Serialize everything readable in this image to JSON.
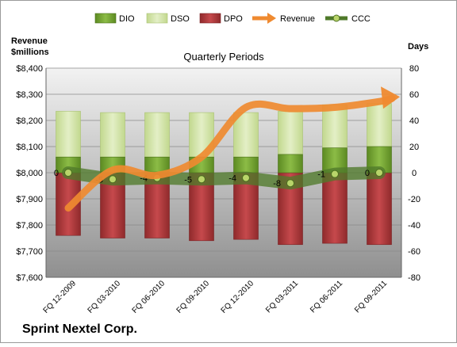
{
  "chart_data": {
    "type": "bar",
    "title": "Quarterly Periods",
    "company": "Sprint Nextel Corp.",
    "y_left_label": [
      "Revenue",
      "$millions"
    ],
    "y_right_label": "Days",
    "y_left_range": [
      7600,
      8400
    ],
    "y_left_ticks": [
      "$7,600",
      "$7,700",
      "$7,800",
      "$7,900",
      "$8,000",
      "$8,100",
      "$8,200",
      "$8,300",
      "$8,400"
    ],
    "y_right_range": [
      -80,
      80
    ],
    "y_right_ticks": [
      "-80",
      "-60",
      "-40",
      "-20",
      "0",
      "20",
      "40",
      "60",
      "80"
    ],
    "categories": [
      "FQ 12-2009",
      "FQ 03-2010",
      "FQ 06-2010",
      "FQ 09-2010",
      "FQ 12-2010",
      "FQ 03-2011",
      "FQ 06-2011",
      "FQ 09-2011"
    ],
    "series": [
      {
        "name": "DIO",
        "axis": "right",
        "values": [
          12,
          12,
          12,
          12,
          12,
          14,
          19,
          20
        ]
      },
      {
        "name": "DSO",
        "axis": "right",
        "values": [
          35,
          34,
          34,
          34,
          34,
          33,
          33,
          33
        ]
      },
      {
        "name": "DPO",
        "axis": "right",
        "values": [
          -48,
          -50,
          -50,
          -52,
          -51,
          -55,
          -54,
          -55
        ]
      },
      {
        "name": "Revenue",
        "axis": "left",
        "values": [
          7865,
          8010,
          7990,
          8060,
          8250,
          8245,
          8250,
          8272
        ]
      },
      {
        "name": "CCC",
        "axis": "right",
        "values": [
          0,
          -5,
          -4,
          -5,
          -4,
          -8,
          -1,
          0
        ]
      }
    ],
    "ccc_labels": [
      "0",
      "-5",
      "-4",
      "-5",
      "-4",
      "-8",
      "-1",
      "0"
    ],
    "grid": true,
    "legend_position": "top",
    "colors": {
      "DIO": "#6e9a2c",
      "DSO": "#d3e6a8",
      "DPO": "#b0383b",
      "Revenue": "#ef8a30",
      "CCC": "#4f7a2a"
    }
  }
}
